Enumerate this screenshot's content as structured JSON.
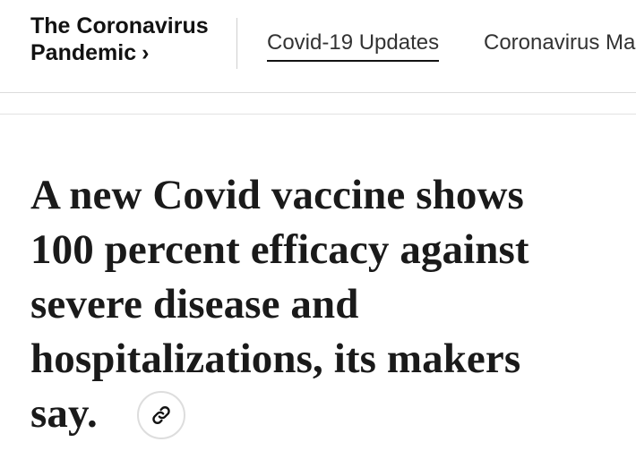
{
  "header": {
    "section_title_line1": "The Coronavirus",
    "section_title_line2": "Pandemic",
    "section_chevron": "›",
    "tabs": [
      {
        "label": "Covid-19 Updates",
        "active": true
      },
      {
        "label": "Coronavirus Ma",
        "active": false
      }
    ]
  },
  "article": {
    "headline_lines": [
      "A new Covid vaccine shows",
      "100 percent efficacy against",
      "severe disease and",
      "hospitalizations, its makers",
      "say."
    ],
    "share_link_icon": "link-icon"
  },
  "colors": {
    "text": "#121212",
    "divider": "#dcdcdc",
    "button_border": "#dddddd"
  }
}
